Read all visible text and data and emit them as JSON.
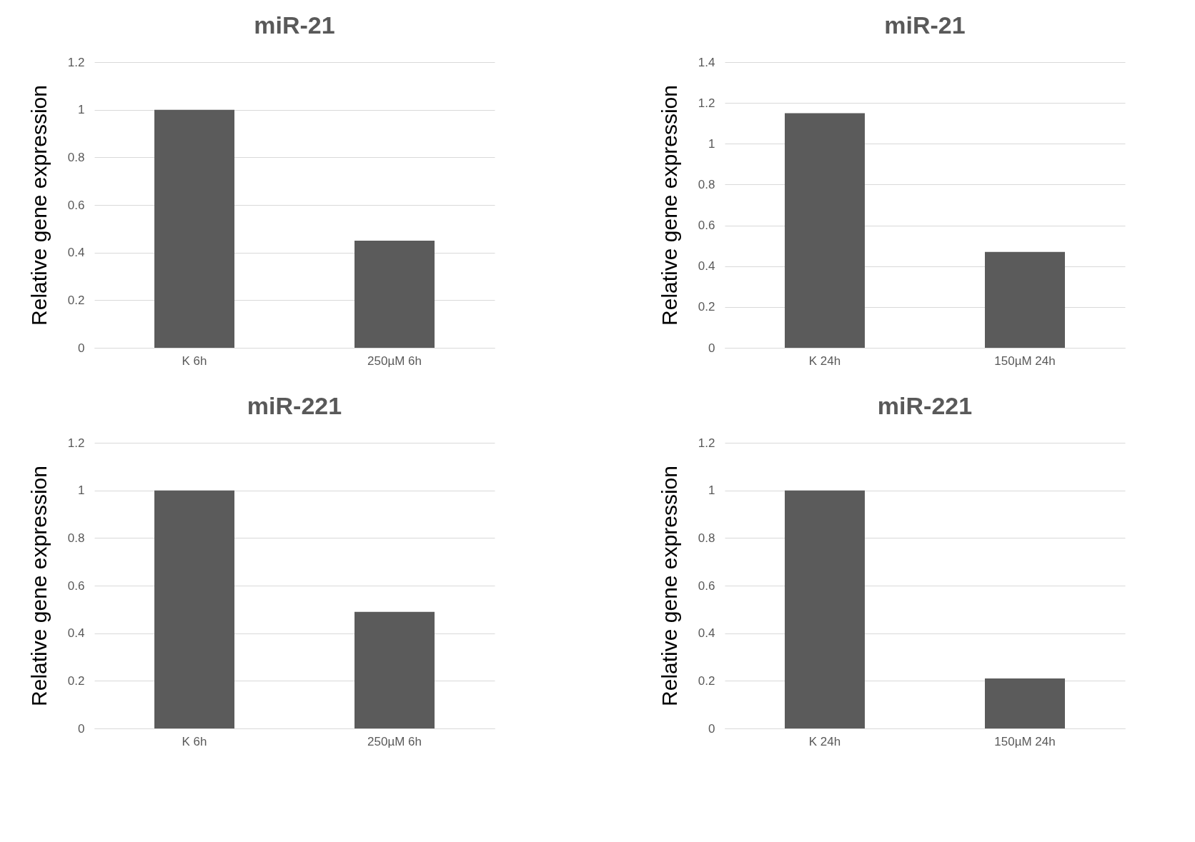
{
  "chart_data": [
    {
      "type": "bar",
      "title": "miR-21",
      "ylabel": "Relative gene expression",
      "categories": [
        "K 6h",
        "250µM 6h"
      ],
      "values": [
        1,
        0.45
      ],
      "color": "#5b5b5b",
      "ylim": [
        0,
        1.2
      ],
      "yticks": [
        0,
        0.2,
        0.4,
        0.6,
        0.8,
        1,
        1.2
      ],
      "grid": "y"
    },
    {
      "type": "bar",
      "title": "miR-21",
      "ylabel": "Relative gene expression",
      "categories": [
        "K 24h",
        "150µM 24h"
      ],
      "values": [
        1.15,
        0.47
      ],
      "color": "#5b5b5b",
      "ylim": [
        0,
        1.4
      ],
      "yticks": [
        0,
        0.2,
        0.4,
        0.6,
        0.8,
        1,
        1.2,
        1.4
      ],
      "grid": "y"
    },
    {
      "type": "bar",
      "title": "miR-221",
      "ylabel": "Relative gene expression",
      "categories": [
        "K 6h",
        "250µM 6h"
      ],
      "values": [
        1,
        0.49
      ],
      "color": "#5b5b5b",
      "ylim": [
        0,
        1.2
      ],
      "yticks": [
        0,
        0.2,
        0.4,
        0.6,
        0.8,
        1,
        1.2
      ],
      "grid": "y"
    },
    {
      "type": "bar",
      "title": "miR-221",
      "ylabel": "Relative gene expression",
      "categories": [
        "K 24h",
        "150µM 24h"
      ],
      "values": [
        1,
        0.21
      ],
      "color": "#5b5b5b",
      "ylim": [
        0,
        1.2
      ],
      "yticks": [
        0,
        0.2,
        0.4,
        0.6,
        0.8,
        1,
        1.2
      ],
      "grid": "y"
    }
  ]
}
